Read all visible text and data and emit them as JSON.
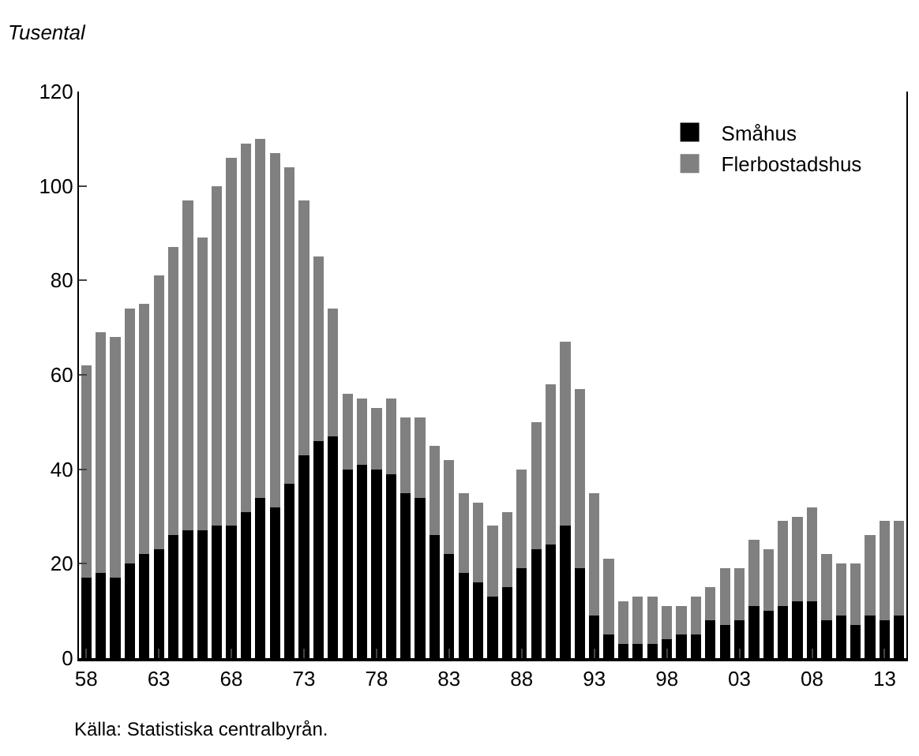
{
  "chart_data": {
    "type": "bar",
    "stacked": true,
    "ylabel": "Tusental",
    "categories": [
      "58",
      null,
      null,
      null,
      null,
      "63",
      null,
      null,
      null,
      null,
      "68",
      null,
      null,
      null,
      null,
      "73",
      null,
      null,
      null,
      null,
      "78",
      null,
      null,
      null,
      null,
      "83",
      null,
      null,
      null,
      null,
      "88",
      null,
      null,
      null,
      null,
      "93",
      null,
      null,
      null,
      null,
      "98",
      null,
      null,
      null,
      null,
      "03",
      null,
      null,
      null,
      null,
      "08",
      null,
      null,
      null,
      null,
      "13",
      null
    ],
    "series": [
      {
        "name": "Småhus",
        "color": "#000000",
        "values": [
          17,
          18,
          17,
          20,
          22,
          23,
          26,
          27,
          27,
          28,
          28,
          31,
          34,
          32,
          37,
          43,
          46,
          47,
          40,
          41,
          40,
          39,
          35,
          34,
          26,
          22,
          18,
          16,
          13,
          15,
          19,
          23,
          24,
          28,
          19,
          9,
          5,
          3,
          3,
          3,
          4,
          5,
          5,
          8,
          7,
          8,
          11,
          10,
          11,
          12,
          12,
          8,
          9,
          7,
          9,
          8,
          9
        ]
      },
      {
        "name": "Flerbostadshus",
        "color": "#808080",
        "values": [
          45,
          51,
          51,
          54,
          53,
          58,
          61,
          70,
          62,
          72,
          78,
          78,
          76,
          75,
          67,
          54,
          39,
          27,
          16,
          14,
          13,
          16,
          16,
          17,
          19,
          20,
          17,
          17,
          15,
          16,
          21,
          27,
          34,
          39,
          38,
          26,
          16,
          9,
          10,
          10,
          7,
          6,
          8,
          7,
          12,
          11,
          14,
          13,
          18,
          18,
          20,
          14,
          11,
          13,
          17,
          21,
          20
        ]
      }
    ],
    "ylim": [
      0,
      120
    ],
    "yticks": [
      0,
      20,
      40,
      60,
      80,
      100,
      120
    ],
    "legend": "top right",
    "annotations": [
      "Källa: Statistiska centralbyrån."
    ]
  }
}
